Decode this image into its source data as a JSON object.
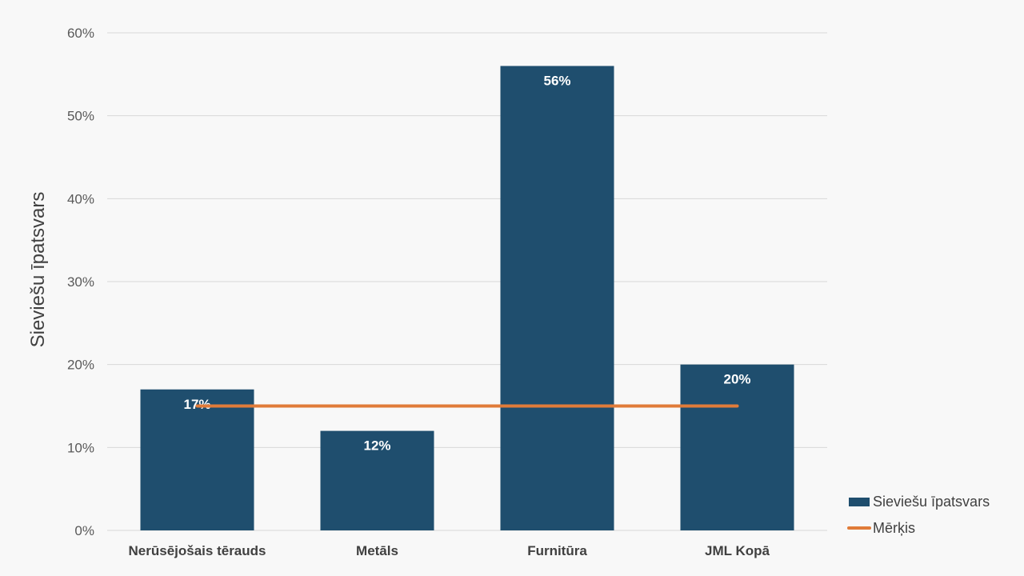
{
  "chart_data": {
    "type": "bar",
    "categories": [
      "Nerūsējošais tērauds",
      "Metāls",
      "Furnitūra",
      "JML Kopā"
    ],
    "series": [
      {
        "name": "Sieviešu īpatsvars",
        "type": "bar",
        "values": [
          0.17,
          0.12,
          0.56,
          0.2
        ],
        "data_labels": [
          "17%",
          "12%",
          "56%",
          "20%"
        ],
        "color": "#1f4e6e"
      },
      {
        "name": "Mērķis",
        "type": "line",
        "values": [
          0.15,
          0.15,
          0.15,
          0.15
        ],
        "color": "#e07b39"
      }
    ],
    "ylabel": "Sieviešu īpatsvars",
    "xlabel": "",
    "ylim": [
      0,
      0.6
    ],
    "yticks": [
      0,
      0.1,
      0.2,
      0.3,
      0.4,
      0.5,
      0.6
    ],
    "ytick_labels": [
      "0%",
      "10%",
      "20%",
      "30%",
      "40%",
      "50%",
      "60%"
    ],
    "grid": true,
    "legend_position": "bottom-right",
    "colors": {
      "grid": "#d9d9d9",
      "background": "#f8f8f8"
    }
  }
}
